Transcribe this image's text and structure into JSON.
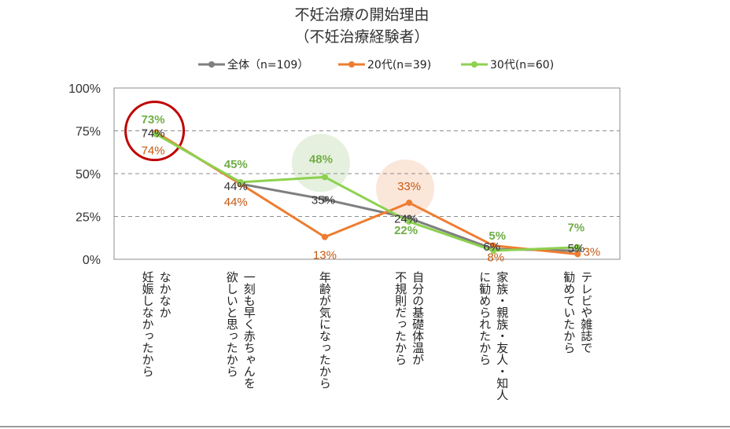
{
  "chart_data": {
    "type": "line",
    "title": "不妊治療の開始理由",
    "subtitle": "（不妊治療経験者）",
    "categories": [
      [
        "なかなか",
        "妊娠しなかったから"
      ],
      [
        "一刻も早く赤ちゃんを",
        "欲しいと思ったから"
      ],
      [
        "年齢が気になったから"
      ],
      [
        "自分の基礎体温が",
        "不規則だったから"
      ],
      [
        "家族・親族・友人・知人",
        "に勧められたから"
      ],
      [
        "テレビや雑誌で",
        "勧めていたから"
      ]
    ],
    "series": [
      {
        "name": "全体（n=109）",
        "color": "#7f7f7f",
        "values": [
          74,
          44,
          35,
          24,
          6,
          5
        ],
        "labels": [
          "74%",
          "44%",
          "35%",
          "24%",
          "6%",
          "5%"
        ]
      },
      {
        "name": "20代(n=39)",
        "color": "#ed7d31",
        "values": [
          74,
          44,
          13,
          33,
          8,
          3
        ],
        "labels": [
          "74%",
          "44%",
          "13%",
          "33%",
          "8%",
          "3%"
        ]
      },
      {
        "name": "30代(n=60)",
        "color": "#8dd14f",
        "values": [
          73,
          45,
          48,
          22,
          5,
          7
        ],
        "labels": [
          "73%",
          "45%",
          "48%",
          "22%",
          "5%",
          "7%"
        ]
      }
    ],
    "y_ticks": [
      "0%",
      "25%",
      "50%",
      "75%",
      "100%"
    ],
    "ylim": [
      0,
      100
    ],
    "grid": "dashed horizontal at 25%, 50%, 75%",
    "legend": "top-center",
    "highlights": [
      {
        "category_index": 0,
        "style": "red-ring",
        "color": "#c00000"
      },
      {
        "category_index": 2,
        "style": "green-bubble",
        "color": "#e2efda"
      },
      {
        "category_index": 3,
        "style": "orange-bubble",
        "color": "#fbe3d6"
      }
    ]
  }
}
